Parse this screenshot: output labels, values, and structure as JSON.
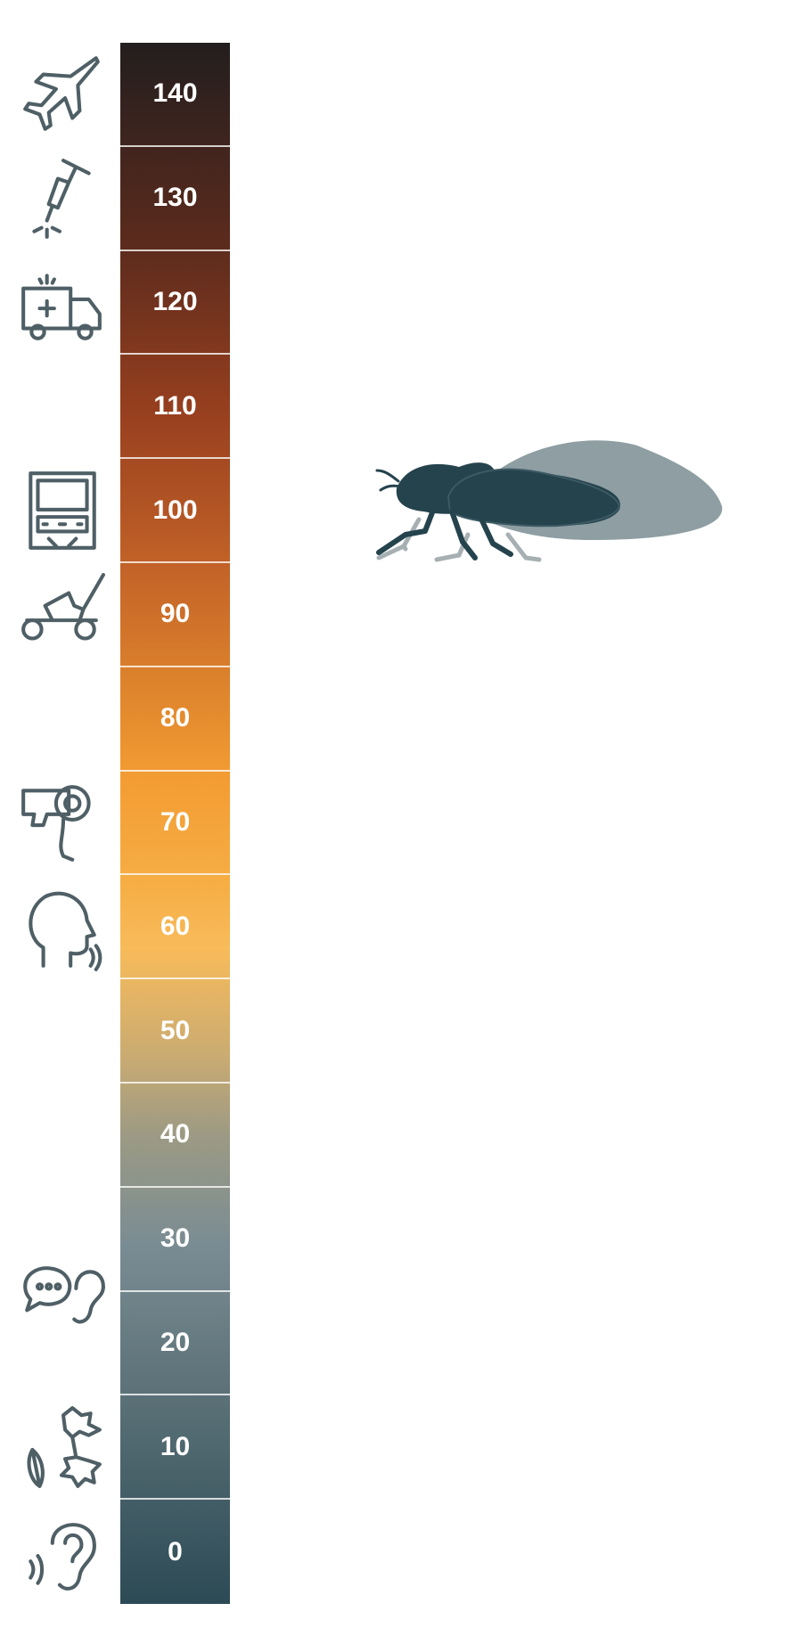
{
  "chart_data": {
    "type": "bar",
    "orientation": "vertical-scale",
    "categories": [
      "140",
      "130",
      "120",
      "110",
      "100",
      "90",
      "80",
      "70",
      "60",
      "50",
      "40",
      "30",
      "20",
      "10",
      "0"
    ],
    "values": [
      140,
      130,
      120,
      110,
      100,
      90,
      80,
      70,
      60,
      50,
      40,
      30,
      20,
      10,
      0
    ],
    "ylim": [
      0,
      150
    ],
    "title": "",
    "xlabel": "",
    "ylabel": "",
    "grid": false,
    "legend": "none",
    "colors": {
      "top": "#231e1e",
      "upper_mid": "#99401f",
      "middle": "#f39c33",
      "lower_mid": "#9c9a84",
      "bottom": "#2c4a55"
    },
    "icon_markers": [
      {
        "level": 140,
        "icon": "fighter-jet-icon"
      },
      {
        "level": 130,
        "icon": "jackhammer-icon"
      },
      {
        "level": 120,
        "icon": "ambulance-icon"
      },
      {
        "level": 100,
        "icon": "subway-train-icon"
      },
      {
        "level": 90,
        "icon": "lawn-mower-icon"
      },
      {
        "level": 70,
        "icon": "hair-dryer-icon"
      },
      {
        "level": 60,
        "icon": "speaking-head-icon"
      },
      {
        "level": 25,
        "icon": "whisper-speech-ear-icon"
      },
      {
        "level": 10,
        "icon": "rustling-leaves-icon"
      },
      {
        "level": 0,
        "icon": "hearing-threshold-ear-icon"
      }
    ],
    "highlight": {
      "level": 100,
      "icon": "cicada-icon",
      "color": "#24434d"
    }
  }
}
